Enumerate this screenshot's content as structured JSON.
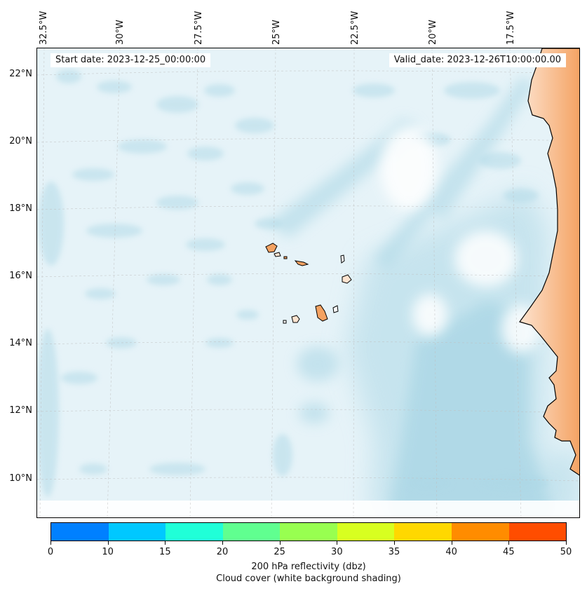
{
  "map": {
    "start_label": "Start date: 2023-12-25_00:00:00",
    "valid_label": "Valid_date: 2023-12-26T10:00:00.00",
    "lon_labels": [
      "32.5°W",
      "30°W",
      "27.5°W",
      "25°W",
      "22.5°W",
      "20°W",
      "17.5°W"
    ],
    "lat_labels": [
      "22°N",
      "20°N",
      "18°N",
      "16°N",
      "14°N",
      "12°N",
      "10°N"
    ],
    "land_color": "#f4a262",
    "cloud_color": "#add8e6"
  },
  "colorbar": {
    "ticks": [
      "0",
      "10",
      "15",
      "20",
      "25",
      "30",
      "35",
      "40",
      "45",
      "50"
    ],
    "colors": [
      "#0080ff",
      "#00c8ff",
      "#20ffd8",
      "#60ff90",
      "#98ff50",
      "#d8ff20",
      "#ffd800",
      "#ff8c00",
      "#ff4d00"
    ],
    "label": "200 hPa reflectivity (dbz)",
    "sublabel": "Cloud cover (white background shading)"
  }
}
